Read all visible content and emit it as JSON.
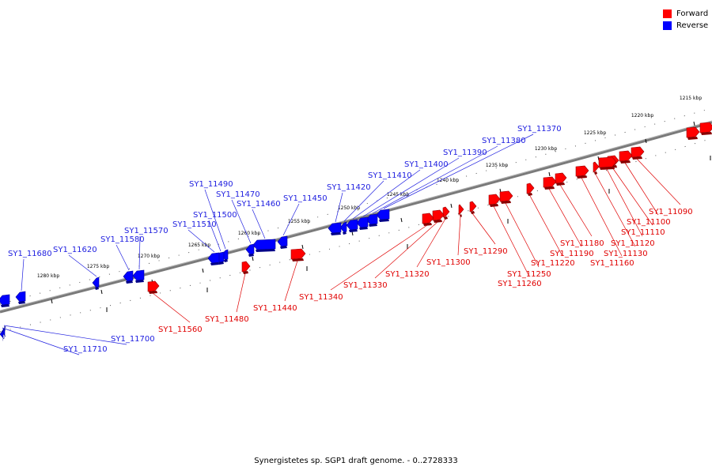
{
  "legend": [
    {
      "label": "Forward",
      "color": "#ff0000"
    },
    {
      "label": "Reverse",
      "color": "#0000ff"
    }
  ],
  "caption": "Synergistetes sp. SGP1 draft genome. - 0..2728333",
  "colors": {
    "forward": "#ff0000",
    "reverse": "#0000ff",
    "backbone": "#808080",
    "leader_forward": "#e00000",
    "leader_reverse": "#2020e0"
  },
  "kbp_marks": [
    {
      "label": "1215 kbp",
      "kbp": 1215
    },
    {
      "label": "1220 kbp",
      "kbp": 1220
    },
    {
      "label": "1225 kbp",
      "kbp": 1225
    },
    {
      "label": "1230 kbp",
      "kbp": 1230
    },
    {
      "label": "1235 kbp",
      "kbp": 1235
    },
    {
      "label": "1240 kbp",
      "kbp": 1240
    },
    {
      "label": "1245 kbp",
      "kbp": 1245
    },
    {
      "label": "1250 kbp",
      "kbp": 1250
    },
    {
      "label": "1255 kbp",
      "kbp": 1255
    },
    {
      "label": "1260 kbp",
      "kbp": 1260
    },
    {
      "label": "1265 kbp",
      "kbp": 1265
    },
    {
      "label": "1270 kbp",
      "kbp": 1270
    },
    {
      "label": "1275 kbp",
      "kbp": 1275
    },
    {
      "label": "1280 kbp",
      "kbp": 1280
    }
  ],
  "genes": [
    {
      "name": "SY1_11090",
      "strand": "forward"
    },
    {
      "name": "SY1_11100",
      "strand": "forward"
    },
    {
      "name": "SY1_11110",
      "strand": "forward"
    },
    {
      "name": "SY1_11120",
      "strand": "forward"
    },
    {
      "name": "SY1_11130",
      "strand": "forward"
    },
    {
      "name": "SY1_11160",
      "strand": "forward"
    },
    {
      "name": "SY1_11180",
      "strand": "forward"
    },
    {
      "name": "SY1_11190",
      "strand": "forward"
    },
    {
      "name": "SY1_11220",
      "strand": "forward"
    },
    {
      "name": "SY1_11250",
      "strand": "forward"
    },
    {
      "name": "SY1_11260",
      "strand": "forward"
    },
    {
      "name": "SY1_11290",
      "strand": "forward"
    },
    {
      "name": "SY1_11300",
      "strand": "forward"
    },
    {
      "name": "SY1_11320",
      "strand": "forward"
    },
    {
      "name": "SY1_11330",
      "strand": "forward"
    },
    {
      "name": "SY1_11340",
      "strand": "forward"
    },
    {
      "name": "SY1_11440",
      "strand": "forward"
    },
    {
      "name": "SY1_11480",
      "strand": "forward"
    },
    {
      "name": "SY1_11560",
      "strand": "forward"
    },
    {
      "name": "SY1_11370",
      "strand": "reverse"
    },
    {
      "name": "SY1_11380",
      "strand": "reverse"
    },
    {
      "name": "SY1_11390",
      "strand": "reverse"
    },
    {
      "name": "SY1_11400",
      "strand": "reverse"
    },
    {
      "name": "SY1_11410",
      "strand": "reverse"
    },
    {
      "name": "SY1_11420",
      "strand": "reverse"
    },
    {
      "name": "SY1_11450",
      "strand": "reverse"
    },
    {
      "name": "SY1_11460",
      "strand": "reverse"
    },
    {
      "name": "SY1_11470",
      "strand": "reverse"
    },
    {
      "name": "SY1_11490",
      "strand": "reverse"
    },
    {
      "name": "SY1_11500",
      "strand": "reverse"
    },
    {
      "name": "SY1_11510",
      "strand": "reverse"
    },
    {
      "name": "SY1_11570",
      "strand": "reverse"
    },
    {
      "name": "SY1_11580",
      "strand": "reverse"
    },
    {
      "name": "SY1_11620",
      "strand": "reverse"
    },
    {
      "name": "SY1_11680",
      "strand": "reverse"
    },
    {
      "name": "SY1_11700",
      "strand": "reverse"
    },
    {
      "name": "SY1_11710",
      "strand": "reverse"
    }
  ]
}
